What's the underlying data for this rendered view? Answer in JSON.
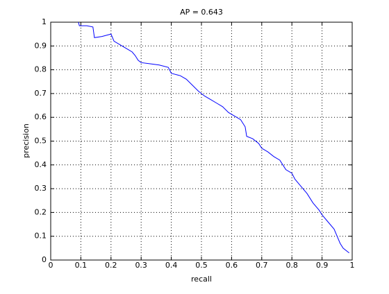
{
  "chart_data": {
    "type": "line",
    "title": "AP = 0.643",
    "xlabel": "recall",
    "ylabel": "precision",
    "x": [
      0.092,
      0.095,
      0.12,
      0.14,
      0.145,
      0.17,
      0.2,
      0.21,
      0.23,
      0.25,
      0.27,
      0.28,
      0.29,
      0.3,
      0.33,
      0.36,
      0.39,
      0.4,
      0.43,
      0.45,
      0.47,
      0.49,
      0.51,
      0.53,
      0.55,
      0.57,
      0.59,
      0.61,
      0.63,
      0.645,
      0.65,
      0.67,
      0.69,
      0.7,
      0.72,
      0.74,
      0.76,
      0.77,
      0.78,
      0.8,
      0.81,
      0.83,
      0.85,
      0.87,
      0.89,
      0.9,
      0.92,
      0.94,
      0.95,
      0.96,
      0.97,
      0.99
    ],
    "values": [
      1.0,
      0.985,
      0.985,
      0.98,
      0.935,
      0.94,
      0.95,
      0.92,
      0.905,
      0.89,
      0.875,
      0.86,
      0.84,
      0.83,
      0.825,
      0.82,
      0.81,
      0.785,
      0.775,
      0.76,
      0.735,
      0.71,
      0.69,
      0.675,
      0.66,
      0.645,
      0.62,
      0.605,
      0.59,
      0.56,
      0.52,
      0.51,
      0.49,
      0.47,
      0.455,
      0.435,
      0.42,
      0.4,
      0.38,
      0.365,
      0.34,
      0.31,
      0.28,
      0.24,
      0.21,
      0.19,
      0.16,
      0.13,
      0.1,
      0.07,
      0.05,
      0.03
    ],
    "color": "#0000ff",
    "xlim": [
      0,
      1
    ],
    "ylim": [
      0,
      1
    ],
    "xticks": [
      0,
      0.1,
      0.2,
      0.3,
      0.4,
      0.5,
      0.6,
      0.7,
      0.8,
      0.9,
      1
    ],
    "yticks": [
      0,
      0.1,
      0.2,
      0.3,
      0.4,
      0.5,
      0.6,
      0.7,
      0.8,
      0.9,
      1
    ],
    "grid": true
  }
}
